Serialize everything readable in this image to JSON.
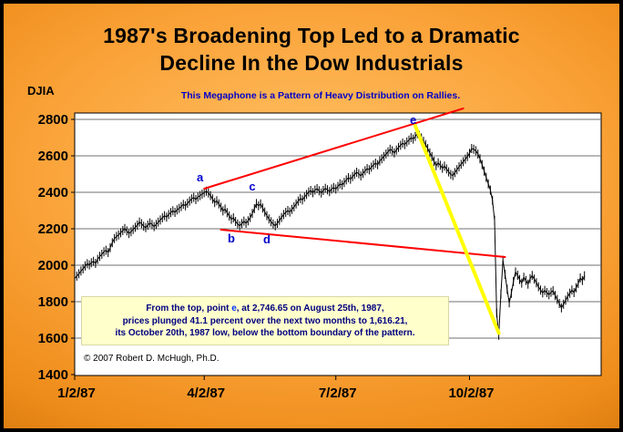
{
  "title": {
    "line1": "1987's Broadening Top Led to a Dramatic",
    "line2": "Decline In the Dow Industrials"
  },
  "axis_title": "DJIA",
  "top_note": "This Megaphone  is a Pattern of Heavy Distribution on Rallies.",
  "callout": {
    "line1_prefix": "From the top, point ",
    "line1_e": "e",
    "line1_suffix": ", at 2,746.65 on August 25th, 1987,",
    "line2": "prices plunged 41.1 percent over the next two months to 1,616.21,",
    "line3": "its October 20th, 1987 low, below the bottom boundary of the pattern."
  },
  "copyright": "© 2007 Robert D. McHugh, Ph.D.",
  "colors": {
    "background_orange": "#F79A2D",
    "trendline_red": "#FF0000",
    "crash_yellow": "#FFFF00",
    "point_label_blue": "#0000CD",
    "callout_bg": "#FFFFCC",
    "callout_text": "#000080",
    "price_black": "#000000",
    "plot_bg": "#FFFFFF",
    "gridline_gray": "#707070"
  },
  "chart_data": {
    "type": "line",
    "title": "1987's Broadening Top Led to a Dramatic Decline In the Dow Industrials",
    "xlabel": "",
    "ylabel": "DJIA",
    "ylim": [
      1400,
      2800
    ],
    "yticks": [
      1400,
      1600,
      1800,
      2000,
      2200,
      2400,
      2600,
      2800
    ],
    "grid": "horizontal",
    "legend": "none",
    "x_total_days": 252,
    "xticks": [
      {
        "label": "1/2/87",
        "day": 0
      },
      {
        "label": "4/2/87",
        "day": 62
      },
      {
        "label": "7/2/87",
        "day": 125
      },
      {
        "label": "10/2/87",
        "day": 189
      }
    ],
    "series": [
      {
        "name": "DJIA daily",
        "color": "#000000",
        "closes": [
          1927,
          1940,
          1953,
          1968,
          1980,
          1996,
          2008,
          2002,
          2014,
          2021,
          2010,
          2032,
          2048,
          2060,
          2074,
          2082,
          2070,
          2096,
          2124,
          2146,
          2158,
          2166,
          2178,
          2190,
          2201,
          2188,
          2174,
          2184,
          2196,
          2208,
          2220,
          2237,
          2228,
          2214,
          2206,
          2220,
          2232,
          2224,
          2212,
          2224,
          2236,
          2248,
          2260,
          2272,
          2264,
          2278,
          2289,
          2299,
          2290,
          2304,
          2312,
          2322,
          2334,
          2326,
          2340,
          2352,
          2364,
          2372,
          2360,
          2374,
          2382,
          2390,
          2398,
          2406,
          2396,
          2382,
          2364,
          2344,
          2354,
          2336,
          2318,
          2298,
          2308,
          2288,
          2270,
          2252,
          2260,
          2240,
          2226,
          2216,
          2228,
          2242,
          2230,
          2244,
          2262,
          2284,
          2310,
          2338,
          2326,
          2336,
          2314,
          2292,
          2272,
          2254,
          2238,
          2226,
          2216,
          2230,
          2246,
          2262,
          2278,
          2290,
          2300,
          2292,
          2306,
          2320,
          2336,
          2352,
          2366,
          2358,
          2374,
          2388,
          2402,
          2410,
          2398,
          2412,
          2420,
          2408,
          2396,
          2410,
          2422,
          2414,
          2404,
          2418,
          2426,
          2418,
          2432,
          2446,
          2440,
          2454,
          2468,
          2480,
          2472,
          2486,
          2498,
          2510,
          2502,
          2490,
          2504,
          2518,
          2530,
          2524,
          2538,
          2550,
          2560,
          2552,
          2572,
          2584,
          2596,
          2610,
          2622,
          2636,
          2628,
          2616,
          2632,
          2646,
          2658,
          2670,
          2662,
          2676,
          2686,
          2700,
          2692,
          2706,
          2722,
          2712,
          2698,
          2680,
          2662,
          2640,
          2616,
          2596,
          2570,
          2546,
          2562,
          2548,
          2532,
          2544,
          2528,
          2512,
          2498,
          2492,
          2508,
          2524,
          2540,
          2554,
          2568,
          2582,
          2596,
          2614,
          2640,
          2636,
          2628,
          2610,
          2584,
          2552,
          2516,
          2482,
          2446,
          2412,
          2356,
          2246,
          1738,
          1616,
          1841,
          2027,
          1950,
          1868,
          1794,
          1846,
          1910,
          1963,
          1945,
          1922,
          1902,
          1934,
          1916,
          1896,
          1926,
          1944,
          1924,
          1904,
          1882,
          1864,
          1848,
          1862,
          1850,
          1838,
          1852,
          1860,
          1834,
          1812,
          1790,
          1766,
          1786,
          1808,
          1828,
          1846,
          1864,
          1850,
          1876,
          1900,
          1930,
          1916,
          1942
        ]
      }
    ],
    "point_labels": [
      {
        "label": "a",
        "day": 60,
        "value": 2480
      },
      {
        "label": "b",
        "day": 75,
        "value": 2145
      },
      {
        "label": "c",
        "day": 85,
        "value": 2430
      },
      {
        "label": "d",
        "day": 92,
        "value": 2140
      },
      {
        "label": "e",
        "day": 162,
        "value": 2795
      }
    ],
    "trendlines": [
      {
        "name": "upper-broadening-boundary",
        "color": "#FF0000",
        "width": 2,
        "from": {
          "day": 62,
          "value": 2420
        },
        "to": {
          "day": 186,
          "value": 2860
        }
      },
      {
        "name": "lower-broadening-boundary",
        "color": "#FF0000",
        "width": 2,
        "from": {
          "day": 70,
          "value": 2195
        },
        "to": {
          "day": 206,
          "value": 2045
        }
      },
      {
        "name": "crash-decline-line",
        "color": "#FFFF00",
        "width": 4,
        "from": {
          "day": 163,
          "value": 2765
        },
        "to": {
          "day": 203,
          "value": 1628
        }
      }
    ],
    "key_stats": {
      "peak": "2,746.65",
      "peak_date": "August 25th, 1987",
      "decline_pct": "41.1",
      "low": "1,616.21",
      "low_date": "October 20th, 1987"
    }
  }
}
